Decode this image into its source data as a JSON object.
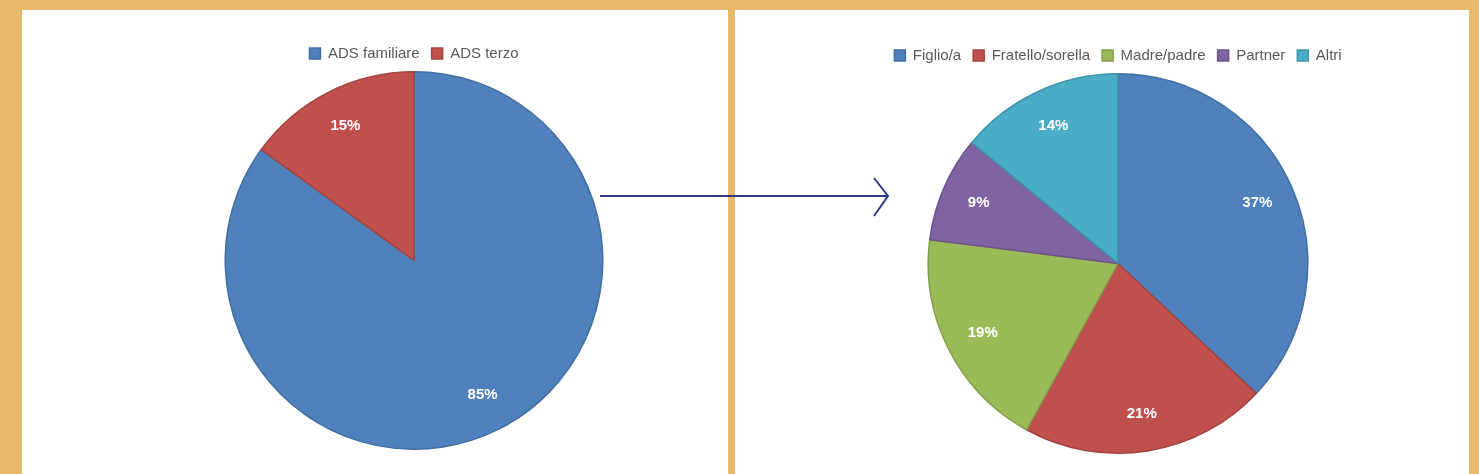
{
  "chart_data": [
    {
      "type": "pie",
      "categories": [
        "ADS familiare",
        "ADS terzo"
      ],
      "values": [
        85,
        15
      ],
      "colors": [
        "#4f81bd",
        "#c0504d"
      ],
      "legend": "top",
      "value_labels": [
        "85%",
        "15%"
      ]
    },
    {
      "type": "pie",
      "categories": [
        "Figlio/a",
        "Fratello/sorella",
        "Madre/padre",
        "Partner",
        "Altri"
      ],
      "values": [
        37,
        21,
        19,
        9,
        14
      ],
      "colors": [
        "#4f81bd",
        "#c0504d",
        "#9bbb59",
        "#8064a2",
        "#4bacc6"
      ],
      "legend": "top",
      "value_labels": [
        "37%",
        "21%",
        "19%",
        "9%",
        "14%"
      ]
    }
  ]
}
